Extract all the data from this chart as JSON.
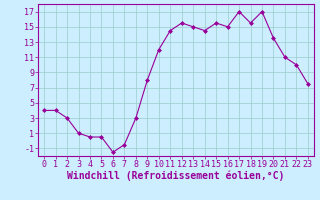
{
  "x": [
    0,
    1,
    2,
    3,
    4,
    5,
    6,
    7,
    8,
    9,
    10,
    11,
    12,
    13,
    14,
    15,
    16,
    17,
    18,
    19,
    20,
    21,
    22,
    23
  ],
  "y": [
    4.0,
    4.0,
    3.0,
    1.0,
    0.5,
    0.5,
    -1.5,
    -0.5,
    3.0,
    8.0,
    12.0,
    14.5,
    15.5,
    15.0,
    14.5,
    15.5,
    15.0,
    17.0,
    15.5,
    17.0,
    13.5,
    11.0,
    10.0,
    7.5
  ],
  "line_color": "#990099",
  "marker": "D",
  "marker_size": 2,
  "bg_color": "#cceeff",
  "grid_color": "#99cccc",
  "axis_color": "#990099",
  "xlabel": "Windchill (Refroidissement éolien,°C)",
  "xlim": [
    -0.5,
    23.5
  ],
  "ylim": [
    -2,
    18
  ],
  "yticks": [
    -1,
    1,
    3,
    5,
    7,
    9,
    11,
    13,
    15,
    17
  ],
  "xticks": [
    0,
    1,
    2,
    3,
    4,
    5,
    6,
    7,
    8,
    9,
    10,
    11,
    12,
    13,
    14,
    15,
    16,
    17,
    18,
    19,
    20,
    21,
    22,
    23
  ],
  "font_color": "#990099",
  "tick_font_size": 6,
  "xlabel_font_size": 7
}
